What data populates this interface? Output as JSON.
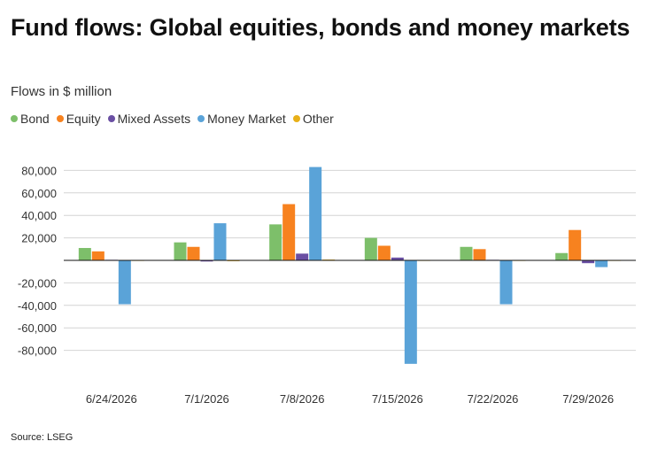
{
  "title": "Fund flows: Global equities, bonds and money markets",
  "subtitle": "Flows in $ million",
  "source": "Source: LSEG",
  "legend": [
    {
      "label": "Bond",
      "color": "#7dbf6a"
    },
    {
      "label": "Equity",
      "color": "#f7821f"
    },
    {
      "label": "Mixed Assets",
      "color": "#6a4fa3"
    },
    {
      "label": "Money Market",
      "color": "#5aa3d8"
    },
    {
      "label": "Other",
      "color": "#e8b018"
    }
  ],
  "chart_data": {
    "type": "bar",
    "categories": [
      "6/24/2026",
      "7/1/2026",
      "7/8/2026",
      "7/15/2026",
      "7/22/2026",
      "7/29/2026"
    ],
    "series": [
      {
        "name": "Bond",
        "color": "#7dbf6a",
        "values": [
          11000,
          16000,
          32000,
          20000,
          12000,
          6500
        ]
      },
      {
        "name": "Equity",
        "color": "#f7821f",
        "values": [
          8000,
          12000,
          50000,
          13000,
          10000,
          27000
        ]
      },
      {
        "name": "Mixed Assets",
        "color": "#6a4fa3",
        "values": [
          500,
          -1000,
          6000,
          2500,
          500,
          -2500
        ]
      },
      {
        "name": "Money Market",
        "color": "#5aa3d8",
        "values": [
          -39000,
          33000,
          83000,
          -92000,
          -39000,
          -6000
        ]
      },
      {
        "name": "Other",
        "color": "#e8b018",
        "values": [
          0,
          -700,
          700,
          0,
          0,
          0
        ]
      }
    ],
    "yticks": [
      80000,
      60000,
      40000,
      20000,
      -20000,
      -40000,
      -60000,
      -80000
    ],
    "ytick_labels": [
      "80,000",
      "60,000",
      "40,000",
      "20,000",
      "-20,000",
      "-40,000",
      "-60,000",
      "-80,000"
    ],
    "ylim": [
      -100000,
      90000
    ],
    "grid": true,
    "legend_position": "top-left"
  }
}
